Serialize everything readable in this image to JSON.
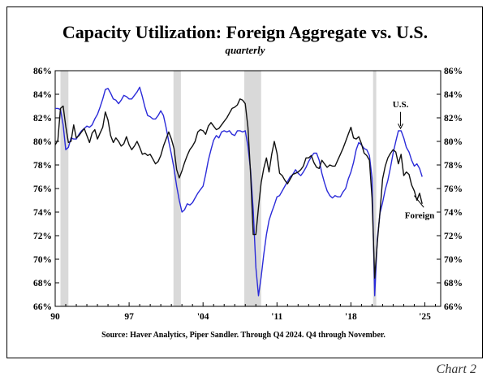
{
  "page": {
    "chart_label": "Chart 2"
  },
  "chart_data": {
    "type": "line",
    "title": "Capacity Utilization: Foreign Aggregate vs. U.S.",
    "subtitle": "quarterly",
    "source": "Source:  Haver Analytics, Piper Sandler. Through Q4 2024. Q4 through November.",
    "xlim": [
      1990,
      2026.5
    ],
    "ylim": [
      66,
      86
    ],
    "x_ticks": [
      {
        "x": 1990,
        "label": "90"
      },
      {
        "x": 1997,
        "label": "97"
      },
      {
        "x": 2004,
        "label": "'04"
      },
      {
        "x": 2011,
        "label": "'11"
      },
      {
        "x": 2018,
        "label": "'18"
      },
      {
        "x": 2025,
        "label": "'25"
      }
    ],
    "y_ticks": [
      {
        "y": 66,
        "label": "66%"
      },
      {
        "y": 68,
        "label": "68%"
      },
      {
        "y": 70,
        "label": "70%"
      },
      {
        "y": 72,
        "label": "72%"
      },
      {
        "y": 74,
        "label": "74%"
      },
      {
        "y": 76,
        "label": "76%"
      },
      {
        "y": 78,
        "label": "78%"
      },
      {
        "y": 80,
        "label": "80%"
      },
      {
        "y": 82,
        "label": "82%"
      },
      {
        "y": 84,
        "label": "84%"
      },
      {
        "y": 86,
        "label": "86%"
      }
    ],
    "recessions": [
      [
        1990.5,
        1991.25
      ],
      [
        2001.2,
        2001.9
      ],
      [
        2007.9,
        2009.5
      ],
      [
        2020.1,
        2020.4
      ]
    ],
    "grid": false,
    "series": [
      {
        "name": "U.S.",
        "color": "#2b2bd9",
        "points": [
          [
            1990.0,
            82.8
          ],
          [
            1990.25,
            82.8
          ],
          [
            1990.5,
            82.7
          ],
          [
            1990.75,
            81.4
          ],
          [
            1991.0,
            79.3
          ],
          [
            1991.25,
            79.5
          ],
          [
            1991.5,
            80.3
          ],
          [
            1991.75,
            80.2
          ],
          [
            1992.0,
            80.2
          ],
          [
            1992.25,
            80.6
          ],
          [
            1992.5,
            80.9
          ],
          [
            1992.75,
            81.1
          ],
          [
            1993.0,
            81.3
          ],
          [
            1993.25,
            81.2
          ],
          [
            1993.5,
            81.4
          ],
          [
            1993.75,
            81.9
          ],
          [
            1994.0,
            82.3
          ],
          [
            1994.25,
            82.9
          ],
          [
            1994.5,
            83.6
          ],
          [
            1994.75,
            84.4
          ],
          [
            1995.0,
            84.5
          ],
          [
            1995.25,
            84.1
          ],
          [
            1995.5,
            83.6
          ],
          [
            1995.75,
            83.5
          ],
          [
            1996.0,
            83.2
          ],
          [
            1996.25,
            83.5
          ],
          [
            1996.5,
            83.9
          ],
          [
            1996.75,
            83.8
          ],
          [
            1997.0,
            83.6
          ],
          [
            1997.25,
            83.6
          ],
          [
            1997.5,
            83.9
          ],
          [
            1997.75,
            84.2
          ],
          [
            1998.0,
            84.6
          ],
          [
            1998.25,
            83.8
          ],
          [
            1998.5,
            82.9
          ],
          [
            1998.75,
            82.2
          ],
          [
            1999.0,
            82.1
          ],
          [
            1999.25,
            81.9
          ],
          [
            1999.5,
            81.9
          ],
          [
            1999.75,
            82.2
          ],
          [
            2000.0,
            82.6
          ],
          [
            2000.25,
            82.2
          ],
          [
            2000.5,
            81.2
          ],
          [
            2000.75,
            80.0
          ],
          [
            2001.0,
            78.9
          ],
          [
            2001.25,
            77.7
          ],
          [
            2001.5,
            76.2
          ],
          [
            2001.75,
            75.0
          ],
          [
            2002.0,
            74.0
          ],
          [
            2002.25,
            74.2
          ],
          [
            2002.5,
            74.7
          ],
          [
            2002.75,
            74.6
          ],
          [
            2003.0,
            74.8
          ],
          [
            2003.25,
            75.2
          ],
          [
            2003.5,
            75.6
          ],
          [
            2003.75,
            75.9
          ],
          [
            2004.0,
            76.2
          ],
          [
            2004.25,
            77.2
          ],
          [
            2004.5,
            78.4
          ],
          [
            2004.75,
            79.3
          ],
          [
            2005.0,
            80.1
          ],
          [
            2005.25,
            80.5
          ],
          [
            2005.5,
            80.3
          ],
          [
            2005.75,
            80.8
          ],
          [
            2006.0,
            80.9
          ],
          [
            2006.25,
            80.8
          ],
          [
            2006.5,
            80.9
          ],
          [
            2006.75,
            80.6
          ],
          [
            2007.0,
            80.5
          ],
          [
            2007.25,
            80.9
          ],
          [
            2007.5,
            80.9
          ],
          [
            2007.75,
            80.8
          ],
          [
            2008.0,
            80.9
          ],
          [
            2008.25,
            79.6
          ],
          [
            2008.5,
            77.5
          ],
          [
            2008.75,
            74.2
          ],
          [
            2009.0,
            69.3
          ],
          [
            2009.25,
            66.9
          ],
          [
            2009.5,
            68.5
          ],
          [
            2009.75,
            70.4
          ],
          [
            2010.0,
            72.1
          ],
          [
            2010.25,
            73.3
          ],
          [
            2010.5,
            74.0
          ],
          [
            2010.75,
            74.6
          ],
          [
            2011.0,
            75.3
          ],
          [
            2011.25,
            75.4
          ],
          [
            2011.5,
            75.8
          ],
          [
            2011.75,
            76.2
          ],
          [
            2012.0,
            76.6
          ],
          [
            2012.25,
            77.0
          ],
          [
            2012.5,
            77.2
          ],
          [
            2012.75,
            77.6
          ],
          [
            2013.0,
            77.3
          ],
          [
            2013.25,
            77.1
          ],
          [
            2013.5,
            77.4
          ],
          [
            2013.75,
            77.8
          ],
          [
            2014.0,
            78.3
          ],
          [
            2014.25,
            78.7
          ],
          [
            2014.5,
            79.0
          ],
          [
            2014.75,
            79.0
          ],
          [
            2015.0,
            78.4
          ],
          [
            2015.25,
            77.3
          ],
          [
            2015.5,
            76.5
          ],
          [
            2015.75,
            75.8
          ],
          [
            2016.0,
            75.4
          ],
          [
            2016.25,
            75.2
          ],
          [
            2016.5,
            75.4
          ],
          [
            2016.75,
            75.3
          ],
          [
            2017.0,
            75.3
          ],
          [
            2017.25,
            75.7
          ],
          [
            2017.5,
            76.0
          ],
          [
            2017.75,
            76.8
          ],
          [
            2018.0,
            77.4
          ],
          [
            2018.25,
            78.2
          ],
          [
            2018.5,
            79.3
          ],
          [
            2018.75,
            79.9
          ],
          [
            2019.0,
            79.7
          ],
          [
            2019.25,
            79.4
          ],
          [
            2019.5,
            79.3
          ],
          [
            2019.75,
            78.8
          ],
          [
            2020.0,
            76.9
          ],
          [
            2020.25,
            66.9
          ],
          [
            2020.5,
            71.7
          ],
          [
            2020.75,
            73.9
          ],
          [
            2021.0,
            74.8
          ],
          [
            2021.25,
            75.9
          ],
          [
            2021.5,
            76.7
          ],
          [
            2021.75,
            77.8
          ],
          [
            2022.0,
            79.0
          ],
          [
            2022.25,
            80.0
          ],
          [
            2022.5,
            80.9
          ],
          [
            2022.75,
            80.9
          ],
          [
            2023.0,
            80.3
          ],
          [
            2023.25,
            79.5
          ],
          [
            2023.5,
            79.1
          ],
          [
            2023.75,
            78.4
          ],
          [
            2024.0,
            77.9
          ],
          [
            2024.25,
            78.1
          ],
          [
            2024.5,
            77.7
          ],
          [
            2024.75,
            77.0
          ]
        ]
      },
      {
        "name": "Foreign",
        "color": "#111111",
        "points": [
          [
            1990.0,
            79.7
          ],
          [
            1990.25,
            80.1
          ],
          [
            1990.5,
            82.8
          ],
          [
            1990.75,
            83.0
          ],
          [
            1991.0,
            81.3
          ],
          [
            1991.25,
            79.9
          ],
          [
            1991.5,
            80.0
          ],
          [
            1991.75,
            81.4
          ],
          [
            1992.0,
            80.3
          ],
          [
            1992.25,
            80.5
          ],
          [
            1992.5,
            80.8
          ],
          [
            1992.75,
            81.1
          ],
          [
            1993.0,
            80.5
          ],
          [
            1993.25,
            79.9
          ],
          [
            1993.5,
            80.7
          ],
          [
            1993.75,
            81.0
          ],
          [
            1994.0,
            80.2
          ],
          [
            1994.25,
            80.7
          ],
          [
            1994.5,
            81.2
          ],
          [
            1994.75,
            82.5
          ],
          [
            1995.0,
            81.8
          ],
          [
            1995.25,
            80.5
          ],
          [
            1995.5,
            79.9
          ],
          [
            1995.75,
            80.3
          ],
          [
            1996.0,
            80.0
          ],
          [
            1996.25,
            79.6
          ],
          [
            1996.5,
            79.8
          ],
          [
            1996.75,
            80.4
          ],
          [
            1997.0,
            79.7
          ],
          [
            1997.25,
            79.3
          ],
          [
            1997.5,
            79.6
          ],
          [
            1997.75,
            80.0
          ],
          [
            1998.0,
            79.5
          ],
          [
            1998.25,
            78.9
          ],
          [
            1998.5,
            79.0
          ],
          [
            1998.75,
            78.8
          ],
          [
            1999.0,
            78.9
          ],
          [
            1999.25,
            78.5
          ],
          [
            1999.5,
            78.1
          ],
          [
            1999.75,
            78.3
          ],
          [
            2000.0,
            78.8
          ],
          [
            2000.25,
            79.6
          ],
          [
            2000.5,
            80.2
          ],
          [
            2000.75,
            80.8
          ],
          [
            2001.0,
            80.2
          ],
          [
            2001.25,
            79.4
          ],
          [
            2001.5,
            77.6
          ],
          [
            2001.75,
            76.9
          ],
          [
            2002.0,
            77.5
          ],
          [
            2002.25,
            78.2
          ],
          [
            2002.5,
            78.8
          ],
          [
            2002.75,
            79.3
          ],
          [
            2003.0,
            79.6
          ],
          [
            2003.25,
            80.0
          ],
          [
            2003.5,
            80.8
          ],
          [
            2003.75,
            81.0
          ],
          [
            2004.0,
            80.9
          ],
          [
            2004.25,
            80.6
          ],
          [
            2004.5,
            81.3
          ],
          [
            2004.75,
            81.6
          ],
          [
            2005.0,
            81.3
          ],
          [
            2005.25,
            81.0
          ],
          [
            2005.5,
            81.1
          ],
          [
            2005.75,
            81.4
          ],
          [
            2006.0,
            81.7
          ],
          [
            2006.25,
            82.0
          ],
          [
            2006.5,
            82.4
          ],
          [
            2006.75,
            82.8
          ],
          [
            2007.0,
            82.9
          ],
          [
            2007.25,
            83.1
          ],
          [
            2007.5,
            83.6
          ],
          [
            2007.75,
            83.5
          ],
          [
            2008.0,
            83.2
          ],
          [
            2008.25,
            81.2
          ],
          [
            2008.5,
            77.2
          ],
          [
            2008.75,
            72.1
          ],
          [
            2009.0,
            72.1
          ],
          [
            2009.25,
            74.4
          ],
          [
            2009.5,
            76.5
          ],
          [
            2009.75,
            77.7
          ],
          [
            2010.0,
            78.6
          ],
          [
            2010.25,
            77.4
          ],
          [
            2010.5,
            78.9
          ],
          [
            2010.75,
            80.0
          ],
          [
            2011.0,
            79.0
          ],
          [
            2011.25,
            77.3
          ],
          [
            2011.5,
            77.1
          ],
          [
            2011.75,
            76.7
          ],
          [
            2012.0,
            76.4
          ],
          [
            2012.25,
            76.8
          ],
          [
            2012.5,
            77.2
          ],
          [
            2012.75,
            77.3
          ],
          [
            2013.0,
            77.4
          ],
          [
            2013.25,
            77.6
          ],
          [
            2013.5,
            77.9
          ],
          [
            2013.75,
            78.6
          ],
          [
            2014.0,
            78.6
          ],
          [
            2014.25,
            78.8
          ],
          [
            2014.5,
            78.2
          ],
          [
            2014.75,
            77.8
          ],
          [
            2015.0,
            77.7
          ],
          [
            2015.25,
            78.4
          ],
          [
            2015.5,
            78.1
          ],
          [
            2015.75,
            77.8
          ],
          [
            2016.0,
            78.0
          ],
          [
            2016.25,
            77.9
          ],
          [
            2016.5,
            77.9
          ],
          [
            2016.75,
            78.4
          ],
          [
            2017.0,
            78.9
          ],
          [
            2017.25,
            79.4
          ],
          [
            2017.5,
            80.0
          ],
          [
            2017.75,
            80.6
          ],
          [
            2018.0,
            81.2
          ],
          [
            2018.25,
            80.3
          ],
          [
            2018.5,
            80.2
          ],
          [
            2018.75,
            80.4
          ],
          [
            2019.0,
            79.8
          ],
          [
            2019.25,
            79.0
          ],
          [
            2019.5,
            78.8
          ],
          [
            2019.75,
            78.4
          ],
          [
            2020.0,
            75.2
          ],
          [
            2020.25,
            68.4
          ],
          [
            2020.5,
            71.4
          ],
          [
            2020.75,
            74.0
          ],
          [
            2021.0,
            76.8
          ],
          [
            2021.25,
            77.9
          ],
          [
            2021.5,
            78.6
          ],
          [
            2021.75,
            79.0
          ],
          [
            2022.0,
            79.3
          ],
          [
            2022.25,
            79.1
          ],
          [
            2022.5,
            78.1
          ],
          [
            2022.75,
            78.9
          ],
          [
            2023.0,
            77.1
          ],
          [
            2023.25,
            77.4
          ],
          [
            2023.5,
            77.2
          ],
          [
            2023.75,
            76.3
          ],
          [
            2024.0,
            75.8
          ],
          [
            2024.25,
            75.0
          ],
          [
            2024.5,
            75.6
          ],
          [
            2024.75,
            74.7
          ]
        ]
      }
    ],
    "annotations": [
      {
        "label": "U.S.",
        "series": "U.S."
      },
      {
        "label": "Foreign",
        "series": "Foreign"
      }
    ]
  }
}
